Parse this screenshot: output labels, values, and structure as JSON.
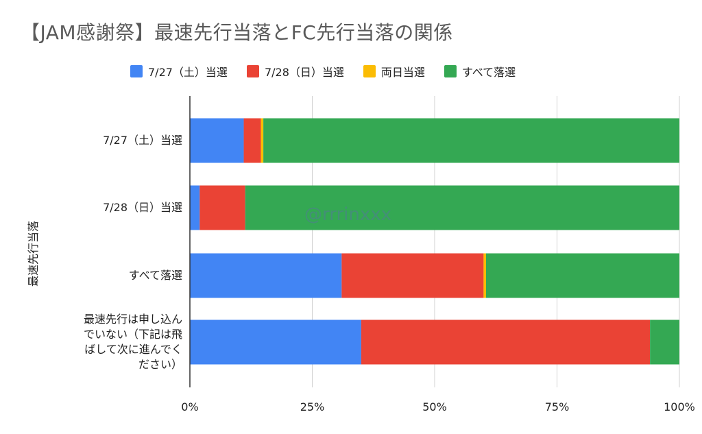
{
  "chart_data": {
    "type": "bar",
    "orientation": "horizontal",
    "stacked": "percent",
    "title": "【JAM感謝祭】最速先行当落とFC先行当落の関係",
    "ylabel": "最速先行当落",
    "xlabel": "",
    "x_ticks": [
      "0%",
      "25%",
      "50%",
      "75%",
      "100%"
    ],
    "xlim": [
      0,
      100
    ],
    "grid": true,
    "legend_position": "top",
    "categories": [
      "7/27（土）当選",
      "7/28（日）当選",
      "すべて落選",
      "最速先行は申し込んでいない（下記は飛ばして次に進んでください）"
    ],
    "category_lines": [
      [
        "7/27（土）当選"
      ],
      [
        "7/28（日）当選"
      ],
      [
        "すべて落選"
      ],
      [
        "最速先行は申し込ん",
        "でいない（下記は飛",
        "ばして次に進んでく",
        "ださい）"
      ]
    ],
    "series": [
      {
        "name": "7/27（土）当選",
        "color": "#4285F4",
        "values": [
          11,
          2,
          31,
          35
        ]
      },
      {
        "name": "7/28（日）当選",
        "color": "#EA4335",
        "values": [
          3.5,
          9.3,
          29,
          59
        ]
      },
      {
        "name": "両日当選",
        "color": "#FBBC04",
        "values": [
          0.5,
          0,
          0.5,
          0
        ]
      },
      {
        "name": "すべて落選",
        "color": "#34A853",
        "values": [
          85,
          88.7,
          39.5,
          6
        ]
      }
    ]
  },
  "watermark": "@rrrinxxx"
}
